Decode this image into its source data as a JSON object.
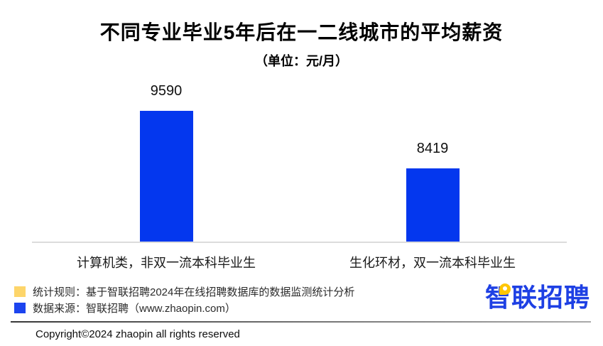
{
  "page": {
    "title": "不同专业毕业5年后在一二线城市的平均薪资",
    "subtitle": "（单位：元/月）"
  },
  "chart_data": {
    "type": "bar",
    "title": "不同专业毕业5年后在一二线城市的平均薪资",
    "subtitle_unit": "（单位：元/月）",
    "categories": [
      "计算机类，非双一流本科毕业生",
      "生化环材，双一流本科毕业生"
    ],
    "values": [
      9590,
      8419
    ],
    "xlabel": "",
    "ylabel": "元/月",
    "ylim": [
      7000,
      9600
    ],
    "grid": false,
    "legend_position": "none",
    "bar_color": "#0437ee",
    "value_labels_shown": true
  },
  "footer": {
    "notes": [
      {
        "icon": "yellow-square-icon",
        "color": "#fdd56a",
        "text": "统计规则：基于智联招聘2024年在线招聘数据库的数据监测统计分析"
      },
      {
        "icon": "blue-square-icon",
        "color": "#1c44ef",
        "text": "数据来源：智联招聘（www.zhaopin.com）"
      }
    ],
    "logo_text": "智联招聘",
    "copyright": "Copyright©2024 zhaopin all rights reserved"
  },
  "colors": {
    "bar_blue": "#0437ee",
    "logo_blue": "#1e40e4",
    "logo_yellow": "#ffc600",
    "axis_line": "#dcdcdc"
  }
}
